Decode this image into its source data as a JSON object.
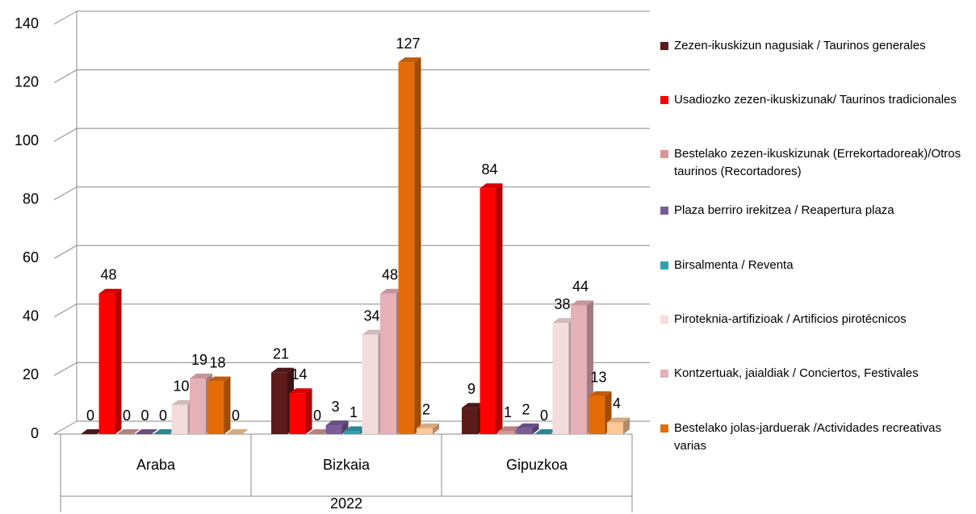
{
  "chart_data": {
    "type": "bar3d",
    "categories": [
      "Araba",
      "Bizkaia",
      "Gipuzkoa"
    ],
    "group_label": "2022",
    "ylim": [
      0,
      140
    ],
    "yticks": [
      0,
      20,
      40,
      60,
      80,
      100,
      120,
      140
    ],
    "grid": true,
    "series": [
      {
        "name": "Zezen-ikuskizun nagusiak / Taurinos generales",
        "color": "#5c1a1a",
        "values": [
          0,
          21,
          9
        ]
      },
      {
        "name": "Usadiozko zezen-ikuskizunak/ Taurinos tradicionales",
        "color": "#ff0000",
        "values": [
          48,
          14,
          84
        ]
      },
      {
        "name": "Bestelako zezen-ikuskizunak (Errekortadoreak)/Otros taurinos (Recortadores)",
        "color": "#d99694",
        "values": [
          0,
          0,
          1
        ]
      },
      {
        "name": "Plaza berriro irekitzea  / Reapertura plaza",
        "color": "#7a5c9a",
        "values": [
          0,
          3,
          2
        ]
      },
      {
        "name": "Birsalmenta / Reventa",
        "color": "#31a0b0",
        "values": [
          0,
          1,
          0
        ]
      },
      {
        "name": "Piroteknia-artifizioak / Artificios pirotécnicos",
        "color": "#f5dcdc",
        "values": [
          10,
          34,
          38
        ]
      },
      {
        "name": "Kontzertuak, jaialdiak / Conciertos, Festivales",
        "color": "#e6b0b8",
        "values": [
          19,
          48,
          44
        ]
      },
      {
        "name": "Bestelako jolas-jarduerak /Actividades recreativas varias",
        "color": "#e36c09",
        "values": [
          18,
          127,
          13
        ]
      },
      {
        "color": "#fcc896",
        "values": [
          0,
          2,
          4
        ]
      }
    ]
  }
}
